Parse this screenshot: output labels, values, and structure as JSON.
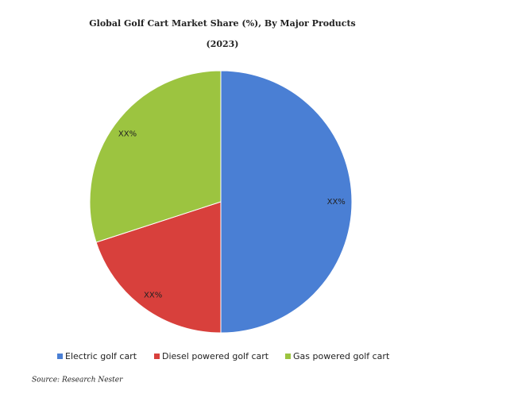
{
  "chart_data": {
    "type": "pie",
    "title": "Global Golf Cart Market Share (%), By Major Products",
    "subtitle": "(2023)",
    "categories": [
      "Electric golf cart",
      "Diesel powered golf cart",
      "Gas powered golf cart"
    ],
    "values": [
      50,
      20,
      30
    ],
    "value_labels": [
      "XX%",
      "XX%",
      "XX%"
    ],
    "colors": [
      "#4a7fd4",
      "#d8403c",
      "#9cc440"
    ],
    "legend": "bottom",
    "source": "Source: Research Nester"
  }
}
